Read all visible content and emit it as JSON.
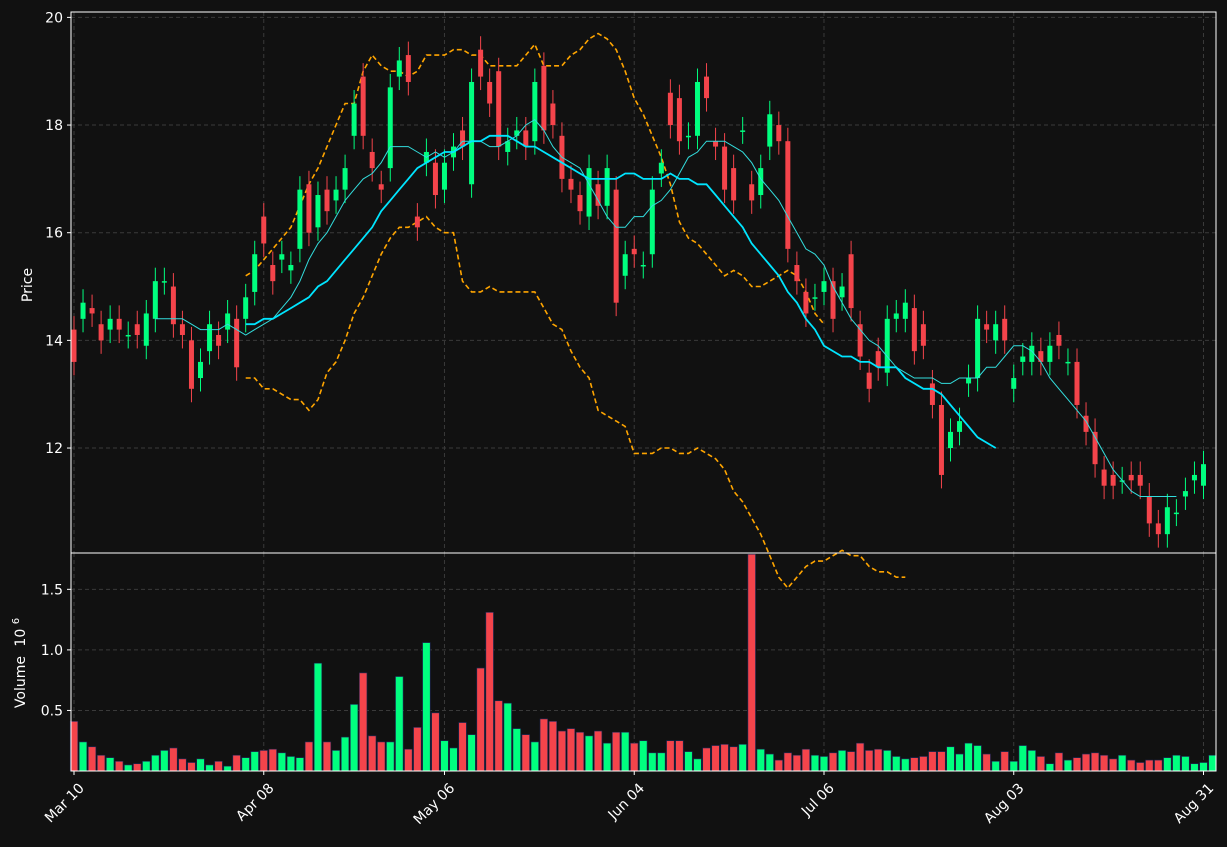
{
  "chart_data": {
    "type": "candlestick",
    "price_panel": {
      "ylabel": "Price",
      "yticks": [
        12,
        14,
        16,
        18,
        20
      ],
      "ylim": [
        10.05,
        20.1
      ],
      "grid": true,
      "overlays": [
        "moving-average-10",
        "moving-average-20",
        "bollinger-upper",
        "bollinger-lower"
      ]
    },
    "volume_panel": {
      "ylabel": "Volume",
      "multiplier_label": "10",
      "multiplier_exponent": "6",
      "yticks": [
        0.5,
        1.0,
        1.5
      ],
      "ytick_labels": [
        "0.5",
        "1.0",
        "1.5"
      ],
      "ylim": [
        0,
        1.8
      ],
      "grid": true
    },
    "xtick_labels": [
      "Mar 10",
      "Apr 08",
      "May 06",
      "Jun 04",
      "Jul 06",
      "Aug 03",
      "Aug 31"
    ],
    "xtick_index": [
      0,
      21,
      41,
      62,
      83,
      104,
      125
    ],
    "colors": {
      "up": "#00ff7f",
      "down": "#f4444b",
      "volume_edge": "#1e2a5a",
      "ma_fast": "#33dddd",
      "ma_slow": "#00e5ff",
      "bands": "#ffa500",
      "background": "#111111",
      "grid": "#3a3a3a",
      "frame": "#ffffff"
    },
    "candles": [
      [
        14.2,
        13.6
      ],
      [
        14.4,
        14.7
      ],
      [
        14.6,
        14.5
      ],
      [
        14.3,
        14.0
      ],
      [
        14.2,
        14.4
      ],
      [
        14.4,
        14.2
      ],
      [
        14.1,
        14.1
      ],
      [
        14.3,
        14.1
      ],
      [
        13.9,
        14.5
      ],
      [
        14.4,
        15.1
      ],
      [
        15.1,
        15.1
      ],
      [
        15.0,
        14.3
      ],
      [
        14.3,
        14.1
      ],
      [
        14.0,
        13.1
      ],
      [
        13.3,
        13.6
      ],
      [
        13.8,
        14.3
      ],
      [
        14.1,
        13.9
      ],
      [
        14.2,
        14.5
      ],
      [
        14.4,
        13.5
      ],
      [
        14.4,
        14.8
      ],
      [
        14.9,
        15.6
      ],
      [
        16.3,
        15.8
      ],
      [
        15.4,
        15.1
      ],
      [
        15.5,
        15.6
      ],
      [
        15.3,
        15.4
      ],
      [
        15.7,
        16.8
      ],
      [
        16.9,
        16.0
      ],
      [
        16.1,
        16.7
      ],
      [
        16.8,
        16.4
      ],
      [
        16.6,
        16.8
      ],
      [
        16.8,
        17.2
      ],
      [
        17.8,
        18.4
      ],
      [
        18.9,
        17.8
      ],
      [
        17.5,
        17.2
      ],
      [
        16.9,
        16.8
      ],
      [
        17.2,
        18.7
      ],
      [
        18.9,
        19.2
      ],
      [
        19.3,
        18.8
      ],
      [
        16.3,
        16.1
      ],
      [
        17.3,
        17.5
      ],
      [
        17.3,
        16.7
      ],
      [
        16.8,
        17.3
      ],
      [
        17.4,
        17.6
      ],
      [
        17.9,
        17.6
      ],
      [
        16.9,
        18.8
      ],
      [
        19.4,
        18.9
      ],
      [
        18.8,
        18.4
      ],
      [
        19.0,
        17.6
      ],
      [
        17.5,
        17.7
      ],
      [
        17.8,
        17.9
      ],
      [
        17.9,
        17.6
      ],
      [
        17.7,
        18.8
      ],
      [
        19.1,
        17.9
      ],
      [
        18.4,
        18.0
      ],
      [
        17.8,
        17.0
      ],
      [
        17.0,
        16.8
      ],
      [
        16.7,
        16.4
      ],
      [
        16.3,
        17.2
      ],
      [
        16.9,
        16.5
      ],
      [
        16.5,
        17.2
      ],
      [
        16.8,
        14.7
      ],
      [
        15.2,
        15.6
      ],
      [
        15.7,
        15.6
      ],
      [
        15.4,
        15.4
      ],
      [
        15.6,
        16.8
      ],
      [
        17.1,
        17.3
      ],
      [
        18.6,
        18.0
      ],
      [
        18.5,
        17.7
      ],
      [
        17.8,
        17.8
      ],
      [
        17.8,
        18.8
      ],
      [
        18.9,
        18.5
      ],
      [
        17.7,
        17.6
      ],
      [
        17.6,
        16.8
      ],
      [
        17.2,
        16.6
      ],
      [
        17.9,
        17.9
      ],
      [
        16.9,
        16.6
      ],
      [
        16.7,
        17.2
      ],
      [
        17.6,
        18.2
      ],
      [
        18.0,
        17.7
      ],
      [
        17.7,
        15.7
      ],
      [
        15.4,
        15.1
      ],
      [
        14.9,
        14.5
      ],
      [
        14.8,
        14.8
      ],
      [
        14.9,
        15.1
      ],
      [
        15.1,
        14.4
      ],
      [
        14.8,
        15.0
      ],
      [
        15.6,
        14.6
      ],
      [
        14.3,
        13.7
      ],
      [
        13.4,
        13.1
      ],
      [
        13.8,
        13.5
      ],
      [
        13.4,
        14.4
      ],
      [
        14.4,
        14.5
      ],
      [
        14.4,
        14.7
      ],
      [
        14.6,
        13.8
      ],
      [
        14.3,
        13.9
      ],
      [
        13.2,
        12.8
      ],
      [
        12.8,
        11.5
      ],
      [
        12.0,
        12.3
      ],
      [
        12.3,
        12.5
      ],
      [
        13.2,
        13.3
      ],
      [
        13.3,
        14.4
      ],
      [
        14.3,
        14.2
      ],
      [
        14.0,
        14.3
      ],
      [
        14.4,
        14.0
      ],
      [
        13.1,
        13.3
      ],
      [
        13.6,
        13.7
      ],
      [
        13.6,
        13.9
      ],
      [
        13.8,
        13.6
      ],
      [
        13.6,
        13.9
      ],
      [
        14.1,
        13.9
      ],
      [
        13.6,
        13.6
      ],
      [
        13.6,
        12.8
      ],
      [
        12.6,
        12.3
      ],
      [
        12.3,
        11.7
      ],
      [
        11.6,
        11.3
      ],
      [
        11.5,
        11.3
      ],
      [
        11.4,
        11.4
      ],
      [
        11.5,
        11.4
      ],
      [
        11.5,
        11.3
      ],
      [
        11.1,
        10.6
      ],
      [
        10.6,
        10.4
      ],
      [
        10.4,
        10.9
      ],
      [
        10.8,
        10.8
      ],
      [
        11.1,
        11.2
      ],
      [
        11.4,
        11.5
      ],
      [
        11.3,
        11.7
      ]
    ],
    "volume_millions": [
      0.41,
      0.24,
      0.2,
      0.13,
      0.11,
      0.08,
      0.05,
      0.06,
      0.08,
      0.13,
      0.17,
      0.19,
      0.1,
      0.07,
      0.1,
      0.05,
      0.08,
      0.04,
      0.13,
      0.11,
      0.16,
      0.17,
      0.18,
      0.15,
      0.12,
      0.11,
      0.24,
      0.89,
      0.24,
      0.17,
      0.28,
      0.55,
      0.81,
      0.29,
      0.24,
      0.24,
      0.78,
      0.18,
      0.36,
      1.06,
      0.48,
      0.25,
      0.19,
      0.4,
      0.3,
      0.85,
      1.31,
      0.58,
      0.56,
      0.35,
      0.3,
      0.24,
      0.43,
      0.41,
      0.33,
      0.35,
      0.32,
      0.29,
      0.33,
      0.23,
      0.32,
      0.32,
      0.23,
      0.25,
      0.15,
      0.15,
      0.25,
      0.25,
      0.16,
      0.1,
      0.19,
      0.21,
      0.22,
      0.2,
      0.22,
      1.79,
      0.18,
      0.14,
      0.09,
      0.15,
      0.13,
      0.18,
      0.13,
      0.12,
      0.15,
      0.17,
      0.16,
      0.23,
      0.17,
      0.18,
      0.17,
      0.12,
      0.1,
      0.11,
      0.12,
      0.16,
      0.16,
      0.2,
      0.14,
      0.23,
      0.21,
      0.14,
      0.08,
      0.16,
      0.08,
      0.21,
      0.17,
      0.12,
      0.06,
      0.15,
      0.09,
      0.11,
      0.14,
      0.15,
      0.13,
      0.1,
      0.13,
      0.09,
      0.07,
      0.09,
      0.09,
      0.11,
      0.13,
      0.12,
      0.06,
      0.07,
      0.13
    ],
    "ma_fast": [
      null,
      null,
      null,
      null,
      null,
      null,
      null,
      null,
      null,
      14.4,
      14.4,
      14.4,
      14.4,
      14.3,
      14.2,
      14.2,
      14.2,
      14.3,
      14.2,
      14.1,
      14.2,
      14.3,
      14.4,
      14.6,
      14.8,
      15.1,
      15.5,
      15.8,
      16.0,
      16.3,
      16.6,
      16.8,
      17.0,
      17.1,
      17.3,
      17.6,
      17.6,
      17.6,
      17.5,
      17.4,
      17.5,
      17.4,
      17.5,
      17.7,
      17.7,
      17.7,
      17.6,
      17.6,
      17.7,
      17.8,
      18.0,
      18.1,
      17.9,
      17.6,
      17.4,
      17.3,
      17.2,
      16.9,
      16.6,
      16.3,
      16.1,
      16.1,
      16.3,
      16.3,
      16.5,
      16.6,
      16.8,
      17.1,
      17.4,
      17.5,
      17.7,
      17.7,
      17.7,
      17.6,
      17.5,
      17.3,
      17.0,
      16.8,
      16.6,
      16.3,
      16.0,
      15.7,
      15.6,
      15.4,
      15.0,
      14.7,
      14.4,
      14.2,
      14.0,
      13.9,
      13.7,
      13.5,
      13.4,
      13.3,
      13.3,
      13.3,
      13.2,
      13.2,
      13.3,
      13.3,
      13.3,
      13.5,
      13.5,
      13.7,
      13.9,
      13.9,
      13.8,
      13.6,
      13.3,
      13.1,
      12.9,
      12.7,
      12.5,
      12.2,
      11.9,
      11.6,
      11.4,
      11.2,
      11.1,
      11.1,
      11.1,
      11.1,
      11.1
    ],
    "ma_slow": [
      null,
      null,
      null,
      null,
      null,
      null,
      null,
      null,
      null,
      null,
      null,
      null,
      null,
      null,
      null,
      null,
      null,
      null,
      null,
      14.3,
      14.3,
      14.4,
      14.4,
      14.5,
      14.6,
      14.7,
      14.8,
      15.0,
      15.1,
      15.3,
      15.5,
      15.7,
      15.9,
      16.1,
      16.4,
      16.6,
      16.8,
      17.0,
      17.2,
      17.3,
      17.4,
      17.5,
      17.5,
      17.6,
      17.7,
      17.7,
      17.8,
      17.8,
      17.8,
      17.7,
      17.6,
      17.6,
      17.5,
      17.4,
      17.3,
      17.2,
      17.1,
      17.0,
      17.0,
      17.0,
      17.0,
      17.1,
      17.1,
      17.0,
      17.0,
      17.0,
      17.1,
      17.0,
      17.0,
      16.9,
      16.9,
      16.7,
      16.5,
      16.3,
      16.1,
      15.8,
      15.6,
      15.4,
      15.2,
      14.9,
      14.7,
      14.4,
      14.2,
      13.9,
      13.8,
      13.7,
      13.7,
      13.6,
      13.6,
      13.5,
      13.5,
      13.5,
      13.3,
      13.2,
      13.1,
      13.1,
      13.0,
      12.8,
      12.6,
      12.4,
      12.2,
      12.1,
      12.0
    ],
    "bollinger_upper": [
      null,
      null,
      null,
      null,
      null,
      null,
      null,
      null,
      null,
      null,
      null,
      null,
      null,
      null,
      null,
      null,
      null,
      null,
      null,
      15.2,
      15.3,
      15.5,
      15.7,
      15.9,
      16.1,
      16.5,
      16.9,
      17.2,
      17.6,
      18.0,
      18.4,
      18.4,
      19.0,
      19.3,
      19.1,
      19.0,
      19.0,
      18.9,
      19.0,
      19.3,
      19.3,
      19.3,
      19.4,
      19.4,
      19.3,
      19.3,
      19.1,
      19.1,
      19.1,
      19.1,
      19.3,
      19.5,
      19.1,
      19.1,
      19.1,
      19.3,
      19.4,
      19.6,
      19.7,
      19.6,
      19.4,
      19.0,
      18.5,
      18.2,
      17.8,
      17.4,
      16.9,
      16.2,
      15.9,
      15.8,
      15.6,
      15.4,
      15.2,
      15.3,
      15.2,
      15.0,
      15.0,
      15.1,
      15.2,
      15.3,
      15.2,
      14.9,
      14.5,
      14.3
    ],
    "bollinger_lower": [
      null,
      null,
      null,
      null,
      null,
      null,
      null,
      null,
      null,
      null,
      null,
      null,
      null,
      null,
      null,
      null,
      null,
      null,
      null,
      13.3,
      13.3,
      13.1,
      13.1,
      13.0,
      12.9,
      12.9,
      12.7,
      12.9,
      13.4,
      13.6,
      14.0,
      14.5,
      14.8,
      15.2,
      15.6,
      15.9,
      16.1,
      16.1,
      16.2,
      16.3,
      16.1,
      16.0,
      16.0,
      15.1,
      14.9,
      14.9,
      15.0,
      14.9,
      14.9,
      14.9,
      14.9,
      14.9,
      14.6,
      14.3,
      14.2,
      13.8,
      13.5,
      13.3,
      12.7,
      12.6,
      12.5,
      12.4,
      11.9,
      11.9,
      11.9,
      12.0,
      12.0,
      11.9,
      11.9,
      12.0,
      11.9,
      11.8,
      11.6,
      11.2,
      11.0,
      10.7,
      10.4,
      10.0,
      9.6,
      9.4,
      9.6,
      9.8,
      9.9,
      9.9,
      10.0,
      10.1,
      10.0,
      10.0,
      9.8,
      9.7,
      9.7,
      9.6,
      9.6
    ]
  }
}
